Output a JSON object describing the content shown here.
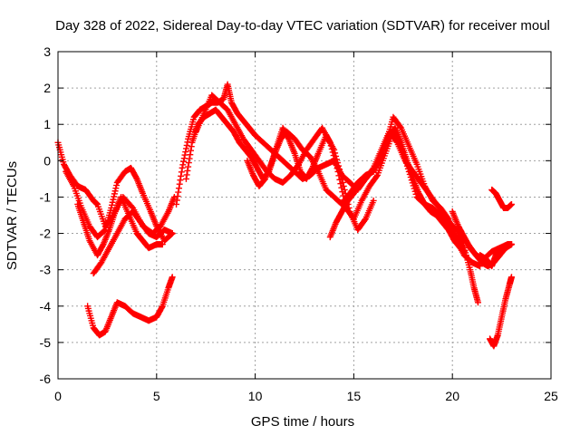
{
  "chart_data": {
    "type": "scatter",
    "title": "Day 328 of 2022, Sidereal Day-to-day VTEC variation (SDTVAR) for receiver moul",
    "xlabel": "GPS time / hours",
    "ylabel": "SDTVAR / TECUs",
    "xlim": [
      0,
      25
    ],
    "ylim": [
      -6,
      3
    ],
    "xticks": [
      0,
      5,
      10,
      15,
      20,
      25
    ],
    "yticks": [
      -6,
      -5,
      -4,
      -3,
      -2,
      -1,
      0,
      1,
      2,
      3
    ],
    "grid": true,
    "marker": "plus",
    "colors": {
      "series": "#ff0000"
    },
    "series": [
      {
        "x": [
          0.0,
          0.3,
          0.6,
          1.0,
          1.4,
          1.8,
          2.0,
          2.4,
          2.8,
          3.3,
          3.8,
          4.3,
          4.8,
          5.2,
          5.6,
          5.9
        ],
        "y": [
          0.5,
          -0.1,
          -0.4,
          -0.7,
          -0.8,
          -1.1,
          -1.2,
          -1.8,
          -1.5,
          -1.0,
          -1.3,
          -1.8,
          -2.0,
          -1.8,
          -1.4,
          -1.0
        ]
      },
      {
        "x": [
          0.4,
          0.8,
          1.2,
          1.6,
          2.0,
          2.4,
          2.7,
          3.0,
          3.4,
          3.7,
          4.0,
          4.3,
          4.7,
          5.0,
          5.4,
          5.8
        ],
        "y": [
          -0.3,
          -0.7,
          -1.3,
          -1.8,
          -2.1,
          -1.9,
          -1.3,
          -0.6,
          -0.3,
          -0.2,
          -0.5,
          -0.9,
          -1.4,
          -1.8,
          -2.2,
          -2.0
        ]
      },
      {
        "x": [
          1.0,
          1.3,
          1.6,
          2.0,
          2.3,
          2.6,
          2.9,
          3.2,
          3.6,
          4.0,
          4.3,
          4.6,
          5.0,
          5.3
        ],
        "y": [
          -1.2,
          -1.7,
          -2.2,
          -2.6,
          -2.3,
          -1.9,
          -1.4,
          -1.0,
          -1.5,
          -2.0,
          -2.2,
          -2.4,
          -2.3,
          -2.3
        ]
      },
      {
        "x": [
          1.8,
          2.2,
          2.6,
          3.0,
          3.4,
          3.8,
          4.2,
          4.6,
          5.0,
          5.4,
          5.8
        ],
        "y": [
          -3.1,
          -2.8,
          -2.4,
          -2.0,
          -1.6,
          -1.4,
          -1.7,
          -2.0,
          -2.1,
          -1.9,
          -2.0
        ]
      },
      {
        "x": [
          1.5,
          1.8,
          2.1,
          2.4,
          2.7,
          3.0,
          3.4,
          3.8,
          4.2,
          4.6,
          5.0,
          5.3,
          5.6,
          5.8
        ],
        "y": [
          -4.0,
          -4.6,
          -4.8,
          -4.7,
          -4.3,
          -3.9,
          -4.0,
          -4.2,
          -4.3,
          -4.4,
          -4.3,
          -4.0,
          -3.5,
          -3.2
        ]
      },
      {
        "x": [
          6.0,
          6.3,
          6.6,
          6.9,
          7.2,
          7.5,
          7.8,
          8.1,
          8.4,
          8.6,
          8.8,
          9.1,
          9.4,
          9.7,
          10.0,
          10.4,
          10.8,
          11.2,
          11.6,
          12.0,
          12.4,
          12.8,
          13.2,
          13.6,
          14.0,
          14.4,
          14.8,
          15.2,
          15.6,
          16.0,
          16.4,
          16.8,
          17.2,
          17.6,
          18.0,
          18.4,
          18.8,
          19.2,
          19.6,
          20.0,
          20.4,
          20.8,
          21.2,
          21.6,
          22.0,
          22.4,
          22.8
        ],
        "y": [
          -1.2,
          -0.2,
          0.6,
          1.2,
          1.4,
          1.5,
          1.6,
          1.6,
          1.7,
          2.1,
          1.6,
          1.3,
          1.1,
          0.9,
          0.7,
          0.5,
          0.3,
          0.1,
          -0.1,
          -0.3,
          -0.5,
          -0.4,
          -0.2,
          -0.1,
          0.0,
          -0.4,
          -0.6,
          -0.8,
          -0.5,
          -0.2,
          0.3,
          0.8,
          0.5,
          0.0,
          -0.3,
          -0.6,
          -0.9,
          -1.2,
          -1.5,
          -1.8,
          -2.0,
          -2.3,
          -2.6,
          -2.7,
          -2.5,
          -2.4,
          -2.3
        ]
      },
      {
        "x": [
          6.5,
          6.8,
          7.1,
          7.4,
          7.7,
          8.0,
          8.3,
          8.6,
          8.9,
          9.2,
          9.5,
          9.8,
          10.1,
          10.4,
          10.7,
          11.0,
          11.3,
          11.6,
          12.0,
          12.4,
          12.8,
          13.2,
          13.6,
          14.0,
          14.4,
          14.8,
          15.2,
          15.6,
          16.0,
          16.4,
          16.7,
          17.0,
          17.4,
          17.8,
          18.2,
          18.6,
          19.0,
          19.4,
          19.8,
          20.2,
          20.6,
          21.0,
          21.4
        ],
        "y": [
          -0.5,
          0.5,
          1.0,
          1.2,
          1.3,
          1.4,
          1.2,
          1.0,
          0.8,
          0.5,
          0.3,
          0.1,
          -0.2,
          -0.5,
          -0.3,
          0.2,
          0.6,
          0.8,
          0.6,
          0.3,
          0.1,
          -0.3,
          -0.8,
          -1.0,
          -1.2,
          -0.9,
          -0.6,
          -0.4,
          -0.3,
          0.1,
          0.6,
          1.2,
          0.9,
          0.4,
          -0.1,
          -0.7,
          -1.1,
          -1.3,
          -1.6,
          -2.2,
          -2.6,
          -2.8,
          -2.9
        ]
      },
      {
        "x": [
          7.0,
          7.4,
          7.8,
          8.2,
          8.6,
          9.0,
          9.4,
          9.8,
          10.2,
          10.6,
          11.0,
          11.4,
          11.8,
          12.2,
          12.6,
          13.0,
          13.4,
          13.8,
          14.2,
          14.6,
          15.0,
          15.4,
          15.8,
          16.2,
          16.6,
          17.0,
          17.4,
          17.8,
          18.2,
          18.6,
          19.0,
          19.4,
          19.8,
          20.2,
          20.6
        ],
        "y": [
          0.8,
          1.3,
          1.8,
          1.6,
          1.4,
          1.0,
          0.6,
          0.3,
          0.0,
          -0.3,
          -0.5,
          -0.6,
          -0.4,
          -0.1,
          0.3,
          0.6,
          0.9,
          0.5,
          -0.3,
          -1.3,
          -1.6,
          -1.1,
          -0.7,
          -0.4,
          0.2,
          0.8,
          0.4,
          -0.3,
          -1.0,
          -1.2,
          -1.3,
          -1.5,
          -1.8,
          -2.1,
          -2.5
        ]
      },
      {
        "x": [
          9.6,
          9.9,
          10.2,
          10.5,
          10.8,
          11.1,
          11.4,
          11.7,
          12.0,
          12.3,
          12.6,
          12.9,
          13.2,
          13.6,
          14.0,
          14.4,
          14.8,
          15.2,
          15.6,
          16.0
        ],
        "y": [
          0.0,
          -0.4,
          -0.7,
          -0.5,
          -0.1,
          0.4,
          0.9,
          0.6,
          0.2,
          -0.3,
          -0.5,
          -0.2,
          0.2,
          0.7,
          0.3,
          -0.5,
          -1.4,
          -1.9,
          -1.6,
          -1.1
        ]
      },
      {
        "x": [
          13.8,
          14.1,
          14.4,
          14.7,
          15.0,
          15.3,
          15.6,
          15.9,
          16.2,
          16.5,
          16.8,
          17.1,
          17.4,
          17.7,
          18.0,
          18.3,
          18.6,
          18.9,
          19.2,
          19.5,
          19.8,
          20.1,
          20.4
        ],
        "y": [
          -2.1,
          -1.7,
          -1.4,
          -1.1,
          -0.9,
          -0.6,
          -0.5,
          -0.3,
          -0.1,
          0.3,
          0.7,
          0.9,
          0.5,
          0.0,
          -0.5,
          -0.9,
          -1.2,
          -1.4,
          -1.5,
          -1.7,
          -1.9,
          -2.2,
          -2.4
        ]
      },
      {
        "x": [
          20.0,
          20.3,
          20.6,
          20.9,
          21.2,
          21.5,
          21.8,
          22.1,
          22.4,
          22.7,
          23.0
        ],
        "y": [
          -1.4,
          -1.8,
          -2.1,
          -2.4,
          -2.6,
          -2.8,
          -2.9,
          -2.8,
          -2.6,
          -2.4,
          -2.3
        ]
      },
      {
        "x": [
          20.3,
          20.6,
          20.9,
          21.1,
          21.3
        ],
        "y": [
          -2.0,
          -2.4,
          -3.0,
          -3.5,
          -3.9
        ]
      },
      {
        "x": [
          21.4,
          21.7,
          22.0,
          22.2,
          22.4,
          22.6,
          22.8,
          23.0
        ],
        "y": [
          -2.6,
          -2.7,
          -2.9,
          -2.6,
          -2.5,
          -2.4,
          -2.3,
          -2.3
        ]
      },
      {
        "x": [
          22.0,
          22.2,
          22.4,
          22.6,
          22.8,
          23.0
        ],
        "y": [
          -0.8,
          -0.9,
          -1.1,
          -1.3,
          -1.3,
          -1.2
        ]
      },
      {
        "x": [
          21.9,
          22.1,
          22.3,
          22.5,
          22.7,
          22.9,
          23.0
        ],
        "y": [
          -4.9,
          -5.1,
          -4.8,
          -4.3,
          -3.8,
          -3.4,
          -3.2
        ]
      }
    ]
  }
}
